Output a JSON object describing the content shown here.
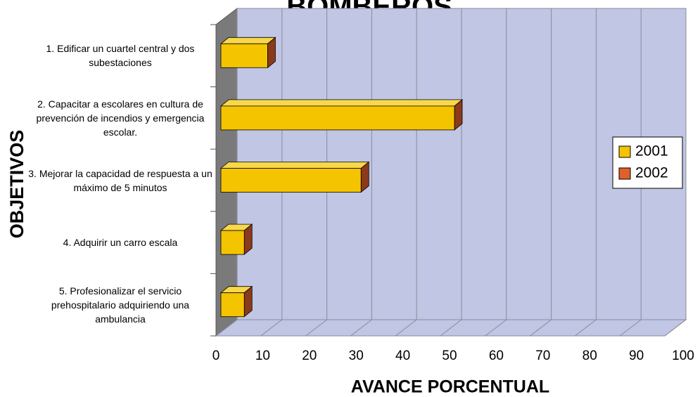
{
  "chart_data": {
    "type": "bar3d_horizontal",
    "title": "BOMBEROS",
    "y_axis_label": "OBJETIVOS",
    "x_axis_label": "AVANCE PORCENTUAL",
    "categories": [
      "1. Edificar un cuartel central y dos subestaciones",
      "2. Capacitar a escolares en cultura de prevención de incendios y emergencia escolar.",
      "3. Mejorar la capacidad de respuesta a un máximo de 5 minutos",
      "4. Adquirir un carro escala",
      "5. Profesionalizar el servicio prehospitalario adquiriendo una ambulancia"
    ],
    "series": [
      {
        "name": "2001",
        "color": "#f5c400",
        "values": [
          10,
          50,
          30,
          5,
          5
        ]
      },
      {
        "name": "2002",
        "color": "#e0602a",
        "values": [
          null,
          null,
          null,
          null,
          null
        ]
      }
    ],
    "xlim": [
      0,
      100
    ],
    "xticks": [
      0,
      10,
      20,
      30,
      40,
      50,
      60,
      70,
      80,
      90,
      100
    ],
    "grid": true,
    "legend": "right"
  }
}
